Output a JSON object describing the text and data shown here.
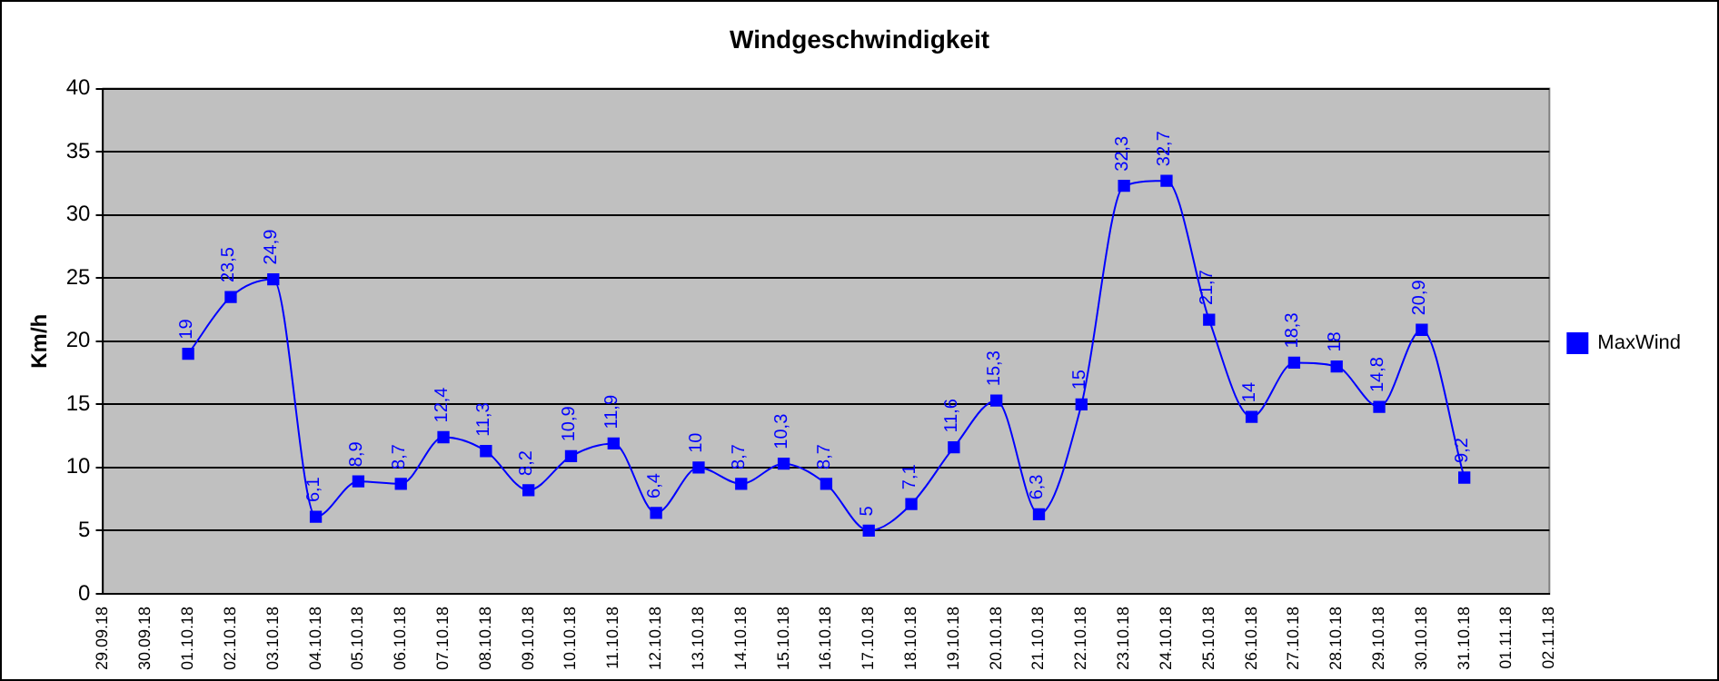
{
  "chart_data": {
    "type": "line",
    "title": "Windgeschwindigkeit",
    "ylabel": "Km/h",
    "categories": [
      "29.09.18",
      "30.09.18",
      "01.10.18",
      "02.10.18",
      "03.10.18",
      "04.10.18",
      "05.10.18",
      "06.10.18",
      "07.10.18",
      "08.10.18",
      "09.10.18",
      "10.10.18",
      "11.10.18",
      "12.10.18",
      "13.10.18",
      "14.10.18",
      "15.10.18",
      "16.10.18",
      "17.10.18",
      "18.10.18",
      "19.10.18",
      "20.10.18",
      "21.10.18",
      "22.10.18",
      "23.10.18",
      "24.10.18",
      "25.10.18",
      "26.10.18",
      "27.10.18",
      "28.10.18",
      "29.10.18",
      "30.10.18",
      "31.10.18",
      "01.11.18",
      "02.11.18"
    ],
    "series": [
      {
        "name": "MaxWind",
        "color": "#0000ff",
        "values": [
          null,
          null,
          19,
          23.5,
          24.9,
          6.1,
          8.9,
          8.7,
          12.4,
          11.3,
          8.2,
          10.9,
          11.9,
          6.4,
          10,
          8.7,
          10.3,
          8.7,
          5,
          7.1,
          11.6,
          15.3,
          6.3,
          15,
          32.3,
          32.7,
          21.7,
          14,
          18.3,
          18,
          14.8,
          20.9,
          9.2,
          null,
          null
        ],
        "value_labels": [
          null,
          null,
          "19",
          "23,5",
          "24,9",
          "6,1",
          "8,9",
          "8,7",
          "12,4",
          "11,3",
          "8,2",
          "10,9",
          "11,9",
          "6,4",
          "10",
          "8,7",
          "10,3",
          "8,7",
          "5",
          "7,1",
          "11,6",
          "15,3",
          "6,3",
          "15",
          "32,3",
          "32,7",
          "21,7",
          "14",
          "18,3",
          "18",
          "14,8",
          "20,9",
          "9,2",
          null,
          null
        ]
      }
    ],
    "ylim": [
      0,
      40
    ],
    "yticks": [
      0,
      5,
      10,
      15,
      20,
      25,
      30,
      35,
      40
    ],
    "grid": "y",
    "legend": "right",
    "marker": "square",
    "line_style": "solid"
  }
}
